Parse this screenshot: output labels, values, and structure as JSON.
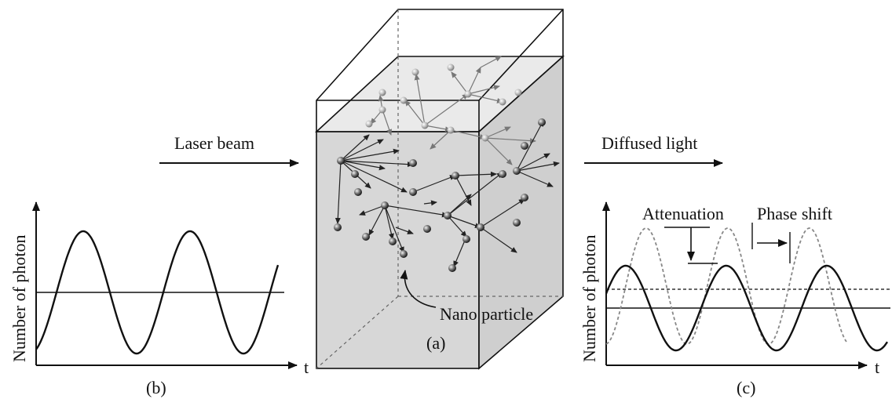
{
  "labels": {
    "laser_beam": "Laser beam",
    "diffused_light": "Diffused light",
    "nano_particle": "Nano particle",
    "attenuation": "Attenuation",
    "phase_shift": "Phase shift",
    "ylabel_left": "Number of photon",
    "ylabel_right": "Number of photon",
    "xlabel_left": "t",
    "xlabel_right": "t",
    "caption_a": "(a)",
    "caption_b": "(b)",
    "caption_c": "(c)"
  },
  "colors": {
    "ink": "#111111",
    "cube_fill": "#d9d9d9",
    "cube_top_fill": "#efefef",
    "dotted_wave": "#888888"
  }
}
